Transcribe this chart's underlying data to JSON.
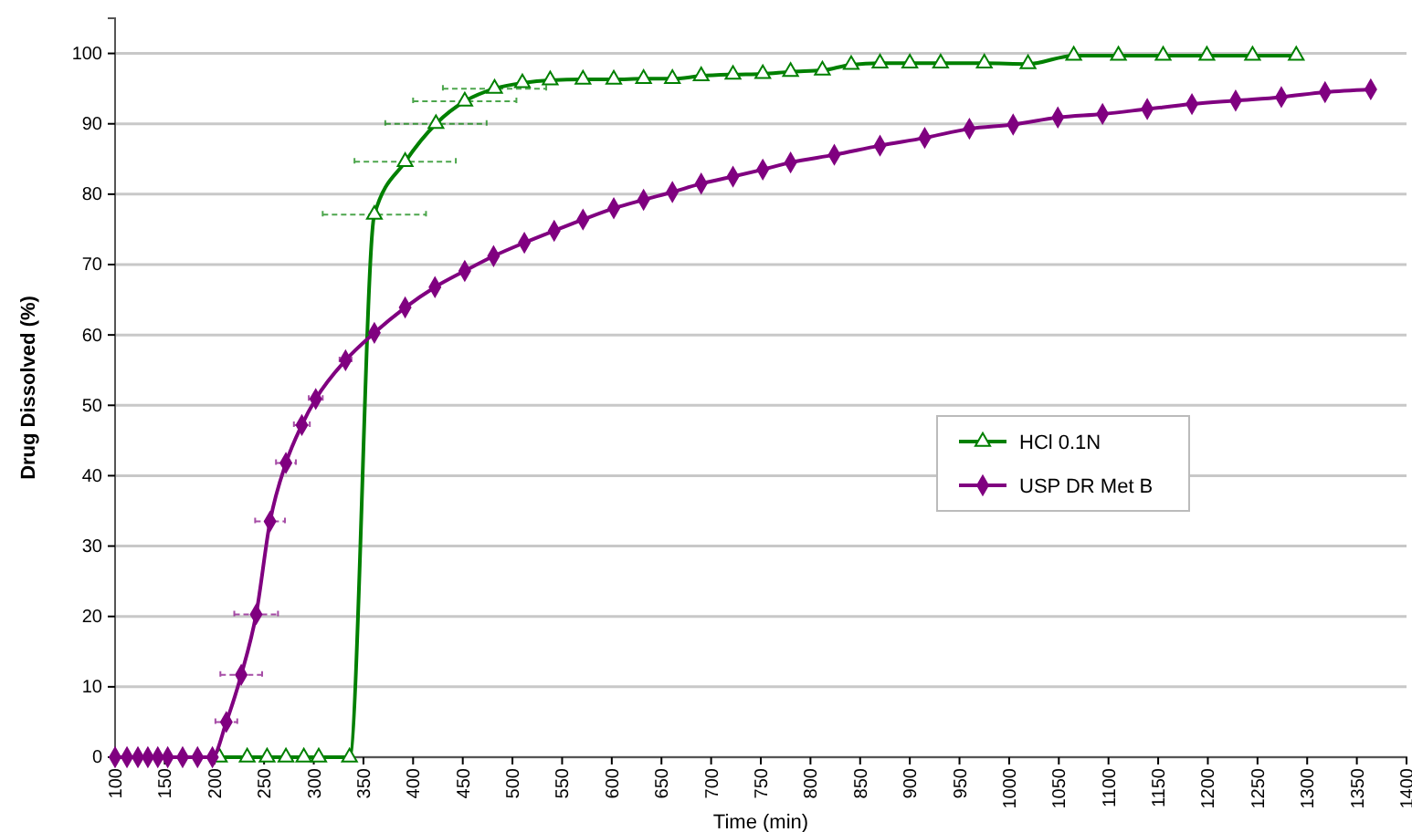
{
  "chart_data": {
    "type": "line",
    "xlabel": "Time (min)",
    "ylabel": "Drug Dissolved (%)",
    "xlim": [
      100,
      1400
    ],
    "xticks": [
      100,
      150,
      200,
      250,
      300,
      350,
      400,
      450,
      500,
      550,
      600,
      650,
      700,
      750,
      800,
      850,
      900,
      950,
      1000,
      1050,
      1100,
      1150,
      1200,
      1250,
      1300,
      1350,
      1400
    ],
    "ylim": [
      0,
      105
    ],
    "yticks": [
      0,
      10,
      20,
      30,
      40,
      50,
      60,
      70,
      80,
      90,
      100
    ],
    "grid": "y",
    "legend": "right",
    "line_style": "solid",
    "series": [
      {
        "name": "HCl 0.1N",
        "color": "#008000",
        "marker": "triangle",
        "x": [
          205,
          233,
          253,
          272,
          290,
          305,
          336,
          361,
          392,
          423,
          452,
          482,
          510,
          538,
          571,
          602,
          632,
          661,
          690,
          722,
          752,
          780,
          812,
          841,
          870,
          900,
          931,
          975,
          1019,
          1065,
          1110,
          1155,
          1199,
          1245,
          1289
        ],
        "values": [
          0,
          0,
          0,
          0,
          0,
          0,
          0,
          77.1,
          84.6,
          90.0,
          93.2,
          95.0,
          95.8,
          96.2,
          96.3,
          96.3,
          96.4,
          96.4,
          96.8,
          97.0,
          97.1,
          97.4,
          97.6,
          98.4,
          98.6,
          98.6,
          98.6,
          98.6,
          98.5,
          99.7,
          99.7,
          99.7,
          99.7,
          99.7,
          99.7
        ],
        "xerrors": [
          null,
          null,
          null,
          null,
          null,
          null,
          null,
          52,
          51,
          51,
          52,
          52,
          null,
          null,
          null,
          null,
          null,
          null,
          null,
          null,
          null,
          null,
          null,
          null,
          null,
          null,
          null,
          null,
          null,
          null,
          null,
          null,
          null,
          null,
          null
        ]
      },
      {
        "name": "USP DR Met B",
        "color": "#800080",
        "marker": "diamond",
        "x": [
          100,
          112,
          123,
          133,
          143,
          153,
          168,
          183,
          198,
          212,
          227,
          242,
          256,
          272,
          288,
          302,
          332,
          361,
          392,
          422,
          452,
          481,
          512,
          542,
          571,
          602,
          632,
          661,
          690,
          722,
          752,
          780,
          824,
          870,
          915,
          960,
          1004,
          1049,
          1094,
          1139,
          1184,
          1228,
          1274,
          1318,
          1364
        ],
        "values": [
          0,
          0,
          0,
          0,
          0,
          0,
          0,
          0,
          0,
          5.0,
          11.7,
          20.3,
          33.5,
          41.8,
          47.2,
          50.9,
          56.4,
          60.3,
          63.9,
          66.8,
          69.1,
          71.2,
          73.1,
          74.8,
          76.4,
          78.0,
          79.2,
          80.3,
          81.5,
          82.5,
          83.5,
          84.5,
          85.6,
          86.9,
          88.0,
          89.3,
          89.9,
          90.9,
          91.4,
          92.1,
          92.8,
          93.3,
          93.8,
          94.5,
          94.9
        ],
        "xerrors": [
          null,
          null,
          null,
          null,
          null,
          null,
          null,
          null,
          null,
          11,
          21,
          22,
          15,
          10,
          8,
          7,
          6,
          null,
          null,
          null,
          null,
          null,
          null,
          null,
          null,
          null,
          null,
          null,
          null,
          null,
          null,
          null,
          null,
          null,
          null,
          null,
          null,
          null,
          null,
          null,
          null,
          null,
          null,
          null,
          null
        ]
      }
    ]
  }
}
